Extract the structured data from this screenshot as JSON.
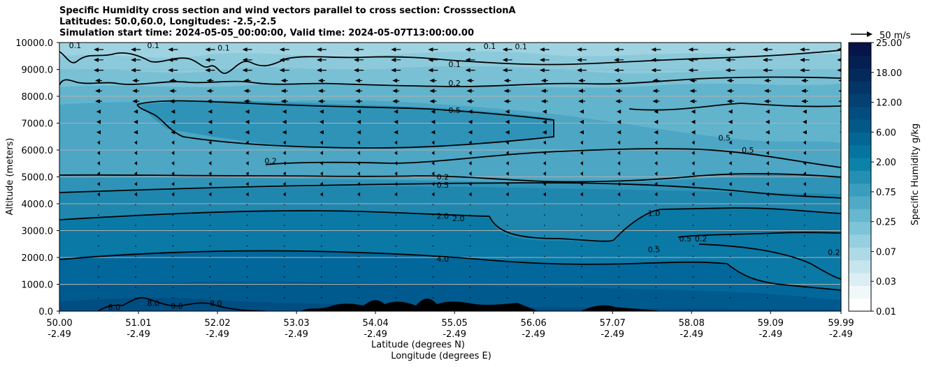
{
  "chart_data": {
    "type": "contour",
    "title_lines": [
      "Specific Humidity cross section and wind vectors parallel to cross section: CrosssectionA",
      "Latitudes: 50.0,60.0, Longitudes: -2.5,-2.5",
      "Simulation start time: 2024-05-05_00:00:00, Valid time: 2024-05-07T13:00:00.00"
    ],
    "xlabel": "Latitude (degrees N)",
    "xlabel2": "Longitude (degrees E)",
    "ylabel": "Altitude (meters)",
    "x_ticks": [
      {
        "lat": "50.00",
        "lon": "-2.49"
      },
      {
        "lat": "51.01",
        "lon": "-2.49"
      },
      {
        "lat": "52.02",
        "lon": "-2.49"
      },
      {
        "lat": "53.03",
        "lon": "-2.49"
      },
      {
        "lat": "54.04",
        "lon": "-2.49"
      },
      {
        "lat": "55.05",
        "lon": "-2.49"
      },
      {
        "lat": "56.06",
        "lon": "-2.49"
      },
      {
        "lat": "57.07",
        "lon": "-2.49"
      },
      {
        "lat": "58.08",
        "lon": "-2.49"
      },
      {
        "lat": "59.09",
        "lon": "-2.49"
      },
      {
        "lat": "59.99",
        "lon": "-2.49"
      }
    ],
    "y_ticks": [
      "0.0",
      "1000.0",
      "2000.0",
      "3000.0",
      "4000.0",
      "5000.0",
      "6000.0",
      "7000.0",
      "8000.0",
      "9000.0",
      "10000.0"
    ],
    "ylim": [
      0,
      10000
    ],
    "colorbar": {
      "label": "Specific Humidity g/kg",
      "ticks": [
        "0.01",
        "0.03",
        "0.07",
        "0.25",
        "0.75",
        "2.00",
        "6.00",
        "12.00",
        "18.00",
        "25.00"
      ]
    },
    "quiver_key": "50 m/s",
    "contour_labels": [
      {
        "text": "0.1",
        "lat": 50.2,
        "alt": 9900
      },
      {
        "text": "0.1",
        "lat": 51.2,
        "alt": 9900
      },
      {
        "text": "0.1",
        "lat": 52.1,
        "alt": 9800
      },
      {
        "text": "0.1",
        "lat": 55.5,
        "alt": 9870
      },
      {
        "text": "0.1",
        "lat": 55.9,
        "alt": 9860
      },
      {
        "text": "0.1",
        "lat": 55.05,
        "alt": 9200
      },
      {
        "text": "0.2",
        "lat": 55.05,
        "alt": 8500
      },
      {
        "text": "0.5",
        "lat": 55.05,
        "alt": 7480
      },
      {
        "text": "0.5",
        "lat": 58.5,
        "alt": 6450
      },
      {
        "text": "0.5",
        "lat": 58.8,
        "alt": 6000
      },
      {
        "text": "0.2",
        "lat": 52.7,
        "alt": 5600
      },
      {
        "text": "0.2",
        "lat": 54.9,
        "alt": 5000
      },
      {
        "text": "0.5",
        "lat": 54.9,
        "alt": 4700
      },
      {
        "text": "2.0",
        "lat": 54.9,
        "alt": 3550
      },
      {
        "text": "2.0",
        "lat": 55.1,
        "alt": 3450
      },
      {
        "text": "1.0",
        "lat": 57.6,
        "alt": 3650
      },
      {
        "text": "0.5",
        "lat": 58.0,
        "alt": 2700
      },
      {
        "text": "0.2",
        "lat": 58.2,
        "alt": 2700
      },
      {
        "text": "0.5",
        "lat": 57.6,
        "alt": 2300
      },
      {
        "text": "0.2",
        "lat": 59.9,
        "alt": 2200
      },
      {
        "text": "4.0",
        "lat": 54.9,
        "alt": 1950
      },
      {
        "text": "8.0",
        "lat": 51.2,
        "alt": 300
      },
      {
        "text": "8.0",
        "lat": 51.5,
        "alt": 200
      },
      {
        "text": "8.0",
        "lat": 52.0,
        "alt": 300
      },
      {
        "text": "8.0",
        "lat": 50.7,
        "alt": 150
      }
    ]
  }
}
